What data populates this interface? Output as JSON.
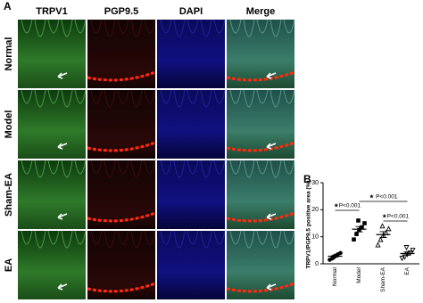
{
  "panel_a": {
    "label": "A",
    "columns": [
      "TRPV1",
      "PGP9.5",
      "DAPI",
      "Merge"
    ],
    "rows": [
      "Normal",
      "Model",
      "Sham-EA",
      "EA"
    ]
  },
  "chart_data": {
    "type": "scatter",
    "label": "B",
    "y_label": "TRPV1/PGP9.5 positive area (%)",
    "categories": [
      "Normal",
      "Model",
      "Sham-EA",
      "EA"
    ],
    "points": [
      [
        1.5,
        2,
        3,
        3.5,
        4,
        2.5
      ],
      [
        9,
        11,
        12.5,
        13.5,
        15,
        16
      ],
      [
        7,
        9,
        10.5,
        11.5,
        13,
        14
      ],
      [
        2,
        2.5,
        3.5,
        4,
        5,
        6
      ]
    ],
    "means": [
      2.8,
      12.8,
      10.8,
      3.8
    ],
    "errors": [
      0.4,
      1.0,
      1.1,
      0.6
    ],
    "markers": [
      "circle",
      "square",
      "triangle",
      "triangle-down"
    ],
    "color": "#000000",
    "ylim": [
      0,
      30
    ],
    "yticks": [
      0,
      10,
      20,
      30
    ],
    "annotations": [
      "★P<0.001",
      "★ P<0.001",
      "★P<0.001"
    ]
  }
}
